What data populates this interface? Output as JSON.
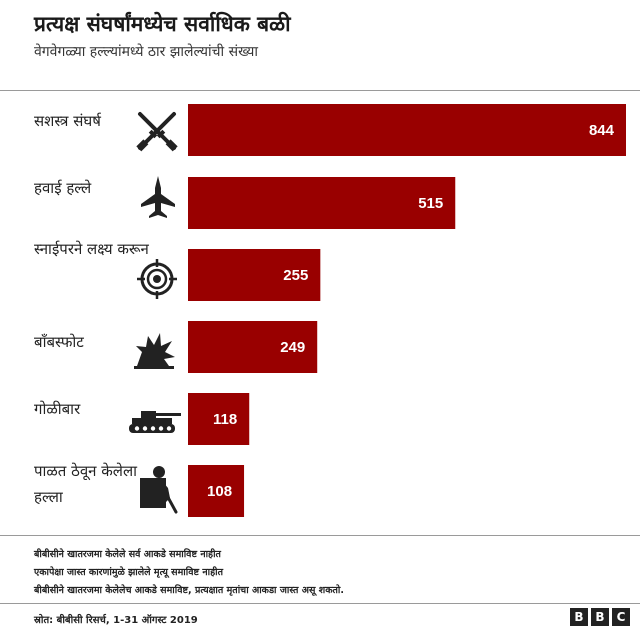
{
  "chart_data": {
    "type": "bar",
    "orientation": "horizontal",
    "title": "प्रत्यक्ष संघर्षांमध्येच सर्वाधिक बळी",
    "subtitle": "वेगवेगळ्या हल्ल्यांमध्ये ठार झालेल्यांची संख्या",
    "categories": [
      "सशस्त्र संघर्ष",
      "हवाई हल्ले",
      "स्नाईपरने लक्ष्य करून",
      "बॉंबस्फोट",
      "गोळीबार",
      "पाळत ठेवून केलेला हल्ला"
    ],
    "values": [
      844,
      515,
      255,
      249,
      118,
      108
    ],
    "data_labels": [
      "844",
      "515",
      "255",
      "249",
      "118",
      "108"
    ],
    "xlim": [
      0,
      844
    ],
    "bar_color": "#990000",
    "grid": false,
    "legend": "none"
  },
  "icons": [
    "crossed-rifles-icon",
    "fighter-jet-icon",
    "sniper-crosshair-icon",
    "explosion-icon",
    "tank-icon",
    "hooded-attacker-icon"
  ],
  "notes": [
    "बीबीसीने खातरजमा केलेले सर्व आकडे समाविष्ट नाहीत",
    "एकापेक्षा जास्त कारणांमुळे झालेले मृत्यू समाविष्ट नाहीत",
    "बीबीसीने खातरजमा केलेलेच आकडे समाविष्ट, प्रत्यक्षात मृतांचा आकडा जास्त असू शकतो."
  ],
  "source": "स्रोत: बीबीसी रिसर्च, 1-31 ऑगस्ट 2019",
  "brand": {
    "letters": [
      "B",
      "B",
      "C"
    ]
  },
  "colors": {
    "bar": "#990000",
    "icon": "#222222",
    "text": "#222222"
  }
}
